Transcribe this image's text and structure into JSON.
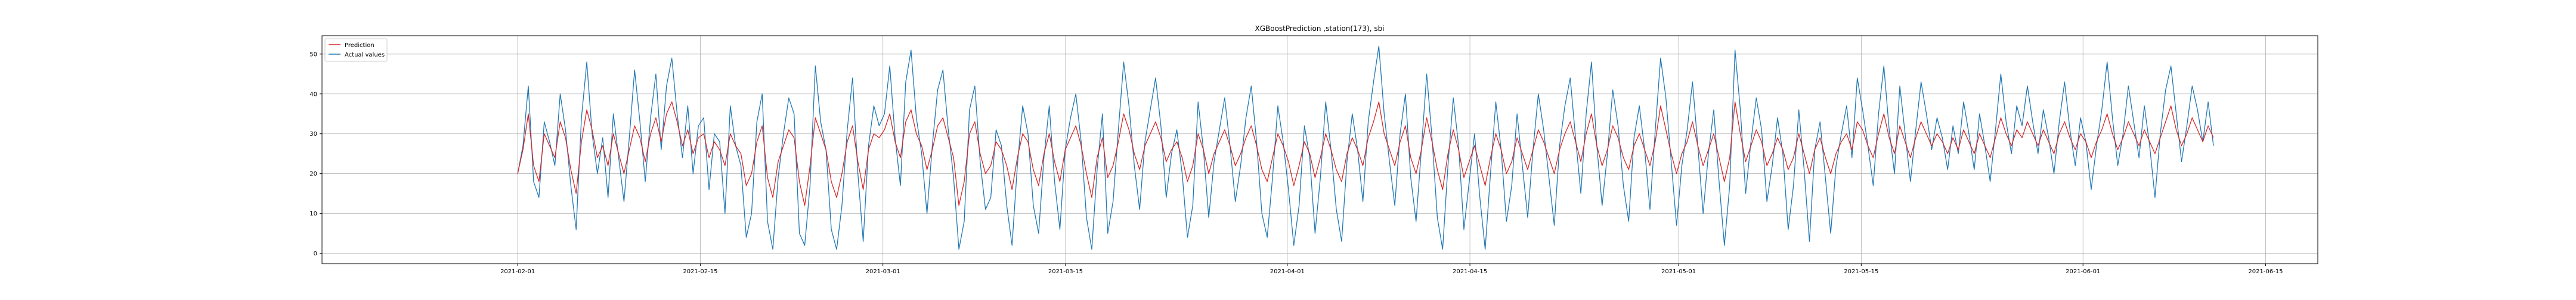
{
  "chart_data": {
    "type": "line",
    "title": "XGBoostPrediction ,station(173), sbi",
    "xlabel": "",
    "ylabel": "",
    "x_range": [
      "2021-01-17",
      "2021-06-19"
    ],
    "x_ticks": [
      "2021-02-01",
      "2021-02-15",
      "2021-03-01",
      "2021-03-15",
      "2021-04-01",
      "2021-04-15",
      "2021-05-01",
      "2021-05-15",
      "2021-06-01",
      "2021-06-15"
    ],
    "ylim": [
      -2.6,
      54.6
    ],
    "y_ticks": [
      0,
      10,
      20,
      30,
      40,
      50
    ],
    "grid": true,
    "legend": "top-left",
    "x_start": "2021-02-01",
    "x_end": "2021-06-11",
    "series": [
      {
        "name": "Prediction",
        "color": "#d62728",
        "values": [
          20,
          26,
          35,
          22,
          18,
          30,
          27,
          24,
          33,
          29,
          21,
          15,
          28,
          36,
          31,
          24,
          27,
          22,
          30,
          25,
          20,
          26,
          32,
          29,
          23,
          30,
          34,
          28,
          35,
          38,
          33,
          27,
          31,
          25,
          29,
          30,
          24,
          28,
          26,
          22,
          30,
          27,
          25,
          17,
          20,
          28,
          32,
          19,
          14,
          23,
          27,
          31,
          29,
          18,
          12,
          22,
          34,
          30,
          26,
          18,
          14,
          20,
          28,
          32,
          23,
          16,
          26,
          30,
          29,
          31,
          35,
          28,
          24,
          33,
          36,
          30,
          27,
          21,
          26,
          32,
          34,
          29,
          24,
          12,
          18,
          30,
          33,
          25,
          20,
          22,
          28,
          26,
          22,
          16,
          24,
          30,
          28,
          21,
          17,
          25,
          30,
          23,
          18,
          26,
          29,
          32,
          27,
          20,
          14,
          24,
          29,
          19,
          22,
          28,
          35,
          31,
          25,
          21,
          27,
          30,
          33,
          29,
          23,
          26,
          28,
          24,
          18,
          22,
          30,
          26,
          20,
          25,
          28,
          31,
          27,
          22,
          25,
          29,
          32,
          27,
          21,
          18,
          24,
          30,
          27,
          23,
          17,
          22,
          28,
          25,
          19,
          24,
          30,
          26,
          21,
          18,
          25,
          29,
          26,
          22,
          29,
          33,
          38,
          30,
          26,
          22,
          28,
          32,
          24,
          20,
          26,
          34,
          28,
          21,
          16,
          25,
          31,
          26,
          19,
          23,
          27,
          22,
          17,
          24,
          30,
          26,
          20,
          23,
          29,
          25,
          21,
          26,
          31,
          28,
          24,
          20,
          26,
          30,
          33,
          28,
          23,
          30,
          35,
          27,
          22,
          26,
          32,
          29,
          24,
          21,
          27,
          30,
          26,
          22,
          28,
          37,
          31,
          25,
          20,
          25,
          28,
          33,
          27,
          22,
          26,
          30,
          24,
          18,
          24,
          38,
          30,
          23,
          27,
          31,
          28,
          22,
          25,
          29,
          26,
          21,
          24,
          30,
          25,
          20,
          26,
          29,
          24,
          20,
          25,
          28,
          30,
          26,
          33,
          31,
          27,
          24,
          30,
          35,
          29,
          25,
          32,
          28,
          24,
          29,
          33,
          30,
          27,
          30,
          28,
          25,
          29,
          26,
          31,
          28,
          25,
          30,
          27,
          24,
          29,
          34,
          30,
          27,
          31,
          29,
          33,
          30,
          27,
          31,
          28,
          25,
          30,
          33,
          29,
          26,
          30,
          28,
          24,
          28,
          31,
          35,
          30,
          26,
          29,
          33,
          30,
          27,
          31,
          28,
          25,
          29,
          33,
          37,
          31,
          27,
          30,
          34,
          31,
          28,
          32,
          29
        ]
      },
      {
        "name": "Actual values",
        "color": "#1f77b4",
        "values": [
          20,
          27,
          42,
          18,
          14,
          33,
          28,
          22,
          40,
          31,
          17,
          6,
          34,
          48,
          30,
          20,
          29,
          14,
          35,
          24,
          13,
          29,
          46,
          33,
          18,
          34,
          45,
          26,
          42,
          49,
          35,
          24,
          37,
          20,
          32,
          34,
          16,
          30,
          28,
          10,
          37,
          27,
          22,
          4,
          10,
          33,
          40,
          8,
          1,
          19,
          30,
          39,
          35,
          5,
          2,
          17,
          47,
          33,
          26,
          6,
          1,
          12,
          31,
          44,
          20,
          3,
          27,
          37,
          32,
          35,
          47,
          29,
          17,
          43,
          51,
          34,
          25,
          10,
          27,
          41,
          46,
          31,
          19,
          1,
          8,
          36,
          42,
          23,
          11,
          14,
          31,
          27,
          12,
          2,
          22,
          37,
          30,
          12,
          5,
          24,
          37,
          18,
          6,
          26,
          34,
          40,
          28,
          9,
          1,
          21,
          35,
          5,
          13,
          31,
          48,
          37,
          22,
          11,
          28,
          36,
          44,
          32,
          14,
          25,
          31,
          20,
          4,
          12,
          38,
          26,
          9,
          23,
          31,
          39,
          27,
          13,
          22,
          34,
          42,
          28,
          10,
          4,
          19,
          37,
          28,
          16,
          2,
          12,
          32,
          24,
          5,
          19,
          38,
          26,
          11,
          3,
          23,
          35,
          26,
          13,
          33,
          43,
          52,
          35,
          23,
          12,
          30,
          40,
          19,
          8,
          26,
          45,
          29,
          9,
          1,
          22,
          39,
          27,
          6,
          18,
          30,
          14,
          1,
          20,
          38,
          26,
          8,
          17,
          35,
          22,
          9,
          26,
          40,
          31,
          19,
          7,
          27,
          37,
          44,
          29,
          15,
          35,
          48,
          27,
          12,
          25,
          41,
          32,
          17,
          8,
          29,
          37,
          26,
          11,
          31,
          49,
          39,
          23,
          7,
          22,
          31,
          43,
          27,
          10,
          25,
          36,
          18,
          2,
          17,
          51,
          36,
          15,
          28,
          39,
          31,
          13,
          22,
          34,
          25,
          6,
          17,
          36,
          21,
          3,
          26,
          33,
          19,
          5,
          22,
          30,
          37,
          24,
          44,
          36,
          27,
          17,
          35,
          47,
          31,
          20,
          42,
          30,
          18,
          31,
          43,
          35,
          26,
          34,
          29,
          21,
          32,
          25,
          38,
          30,
          21,
          35,
          27,
          18,
          31,
          45,
          33,
          25,
          37,
          32,
          42,
          33,
          25,
          36,
          29,
          20,
          33,
          43,
          31,
          22,
          34,
          28,
          16,
          27,
          36,
          48,
          34,
          22,
          30,
          42,
          33,
          24,
          37,
          27,
          14,
          30,
          41,
          47,
          35,
          23,
          32,
          42,
          36,
          28,
          38,
          27
        ]
      }
    ]
  }
}
